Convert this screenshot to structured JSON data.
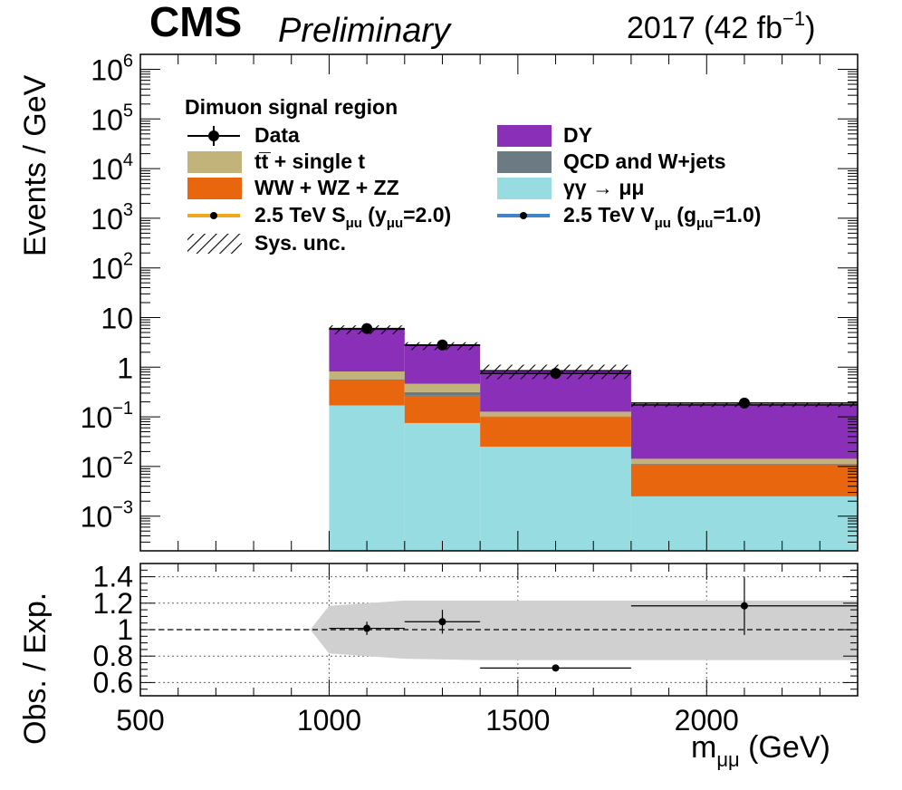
{
  "header": {
    "experiment": "CMS",
    "status": "Preliminary",
    "lumi_label": "2017 (42 fb",
    "lumi_exp": "−1",
    "lumi_close": ")"
  },
  "axes": {
    "y_main_label": "Events / GeV",
    "y_ratio_label": "Obs. / Exp.",
    "x_label_main": "m",
    "x_label_sub": "μμ",
    "x_label_unit": " (GeV)",
    "y_main_ticks": [
      {
        "base": "10",
        "exp": "6",
        "v": 1000000
      },
      {
        "base": "10",
        "exp": "5",
        "v": 100000
      },
      {
        "base": "10",
        "exp": "4",
        "v": 10000
      },
      {
        "base": "10",
        "exp": "3",
        "v": 1000
      },
      {
        "base": "10",
        "exp": "2",
        "v": 100
      },
      {
        "base": "10",
        "exp": "",
        "v": 10
      },
      {
        "base": "1",
        "exp": "",
        "v": 1
      },
      {
        "base": "10",
        "exp": "−1",
        "v": 0.1
      },
      {
        "base": "10",
        "exp": "−2",
        "v": 0.01
      },
      {
        "base": "10",
        "exp": "−3",
        "v": 0.001
      }
    ],
    "y_ratio_ticks": [
      "1.4",
      "1.2",
      "1",
      "0.8",
      "0.6"
    ],
    "x_ticks": [
      "500",
      "1000",
      "1500",
      "2000"
    ]
  },
  "legend": {
    "header": "Dimuon signal region",
    "entries": [
      {
        "label": "Data",
        "kind": "data"
      },
      {
        "label": "DY",
        "kind": "fill",
        "color": "#8a2fb8"
      },
      {
        "label": "tt̅ + single t",
        "kind": "fill",
        "color": "#c2b37a"
      },
      {
        "label": "QCD and W+jets",
        "kind": "fill",
        "color": "#6c7a84"
      },
      {
        "label": "WW + WZ + ZZ",
        "kind": "fill",
        "color": "#e8670e"
      },
      {
        "label": "γγ  →  μμ",
        "kind": "fill",
        "color": "#96dce0"
      },
      {
        "label_pre": "2.5 TeV S",
        "label_sub1": "μu",
        "label_mid": " (y",
        "label_sub2": "μu",
        "label_post": "=2.0)",
        "kind": "signal",
        "color": "#f0a81e"
      },
      {
        "label_pre": "2.5 TeV V",
        "label_sub1": "μu",
        "label_mid": " (g",
        "label_sub2": "μu",
        "label_post": "=1.0)",
        "kind": "signal",
        "color": "#3e84c6"
      },
      {
        "label": "Sys. unc.",
        "kind": "hatch"
      }
    ]
  },
  "chart_data": [
    {
      "type": "bar",
      "title": "",
      "xlabel": "m_μμ (GeV)",
      "ylabel": "Events / GeV",
      "yscale": "log",
      "xlim": [
        500,
        2400
      ],
      "ylim": [
        0.0002,
        2000000
      ],
      "bins": [
        [
          1000,
          1200
        ],
        [
          1200,
          1400
        ],
        [
          1400,
          1800
        ],
        [
          1800,
          2400
        ]
      ],
      "series": [
        {
          "name": "γγ  →  μμ",
          "color": "#96dce0",
          "values": [
            0.17,
            0.075,
            0.025,
            0.0025
          ]
        },
        {
          "name": "WW + WZ + ZZ",
          "color": "#e8670e",
          "values": [
            0.38,
            0.19,
            0.075,
            0.0085
          ]
        },
        {
          "name": "QCD and W+jets",
          "color": "#6c7a84",
          "values": [
            0.02,
            0.05,
            0.002,
            0.0003
          ]
        },
        {
          "name": "tt̅ + single t",
          "color": "#c2b37a",
          "values": [
            0.25,
            0.15,
            0.025,
            0.003
          ]
        },
        {
          "name": "DY",
          "color": "#8a2fb8",
          "values": [
            5.0,
            2.3,
            0.72,
            0.16
          ]
        }
      ],
      "total": [
        5.8,
        2.7,
        0.85,
        0.175
      ],
      "sys_unc_rel": [
        0.2,
        0.18,
        0.32,
        0.1
      ],
      "data": {
        "name": "Data",
        "x": [
          1100,
          1300,
          1600,
          2100
        ],
        "y": [
          6.0,
          2.8,
          0.75,
          0.19
        ],
        "xerr": [
          100,
          100,
          200,
          300
        ]
      },
      "grid": false,
      "legend_position": "top"
    },
    {
      "type": "scatter",
      "title": "",
      "xlabel": "m_μμ (GeV)",
      "ylabel": "Obs. / Exp.",
      "xlim": [
        500,
        2400
      ],
      "ylim": [
        0.5,
        1.5
      ],
      "grid": true,
      "reference_line": 1.0,
      "points": {
        "x": [
          1100,
          1300,
          1600,
          2100
        ],
        "y": [
          1.01,
          1.06,
          0.71,
          1.18
        ],
        "xerr": [
          100,
          100,
          200,
          300
        ],
        "yerr": [
          0.05,
          0.09,
          0.0,
          0.22
        ]
      },
      "uncertainty_band": {
        "x": [
          950,
          1000,
          1200,
          1400,
          1800,
          2400
        ],
        "lower": [
          1.0,
          0.82,
          0.78,
          0.77,
          0.77,
          0.77
        ],
        "upper": [
          1.0,
          1.18,
          1.22,
          1.22,
          1.22,
          1.22
        ]
      }
    }
  ]
}
